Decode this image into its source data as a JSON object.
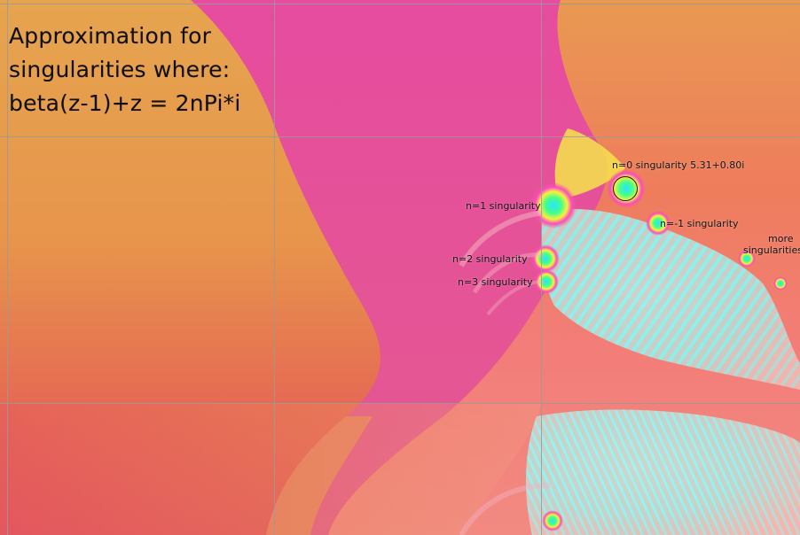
{
  "title": {
    "lines": [
      "Approximation for",
      "singularities where:",
      "beta(z-1)+z = 2nPi*i"
    ]
  },
  "annotations": {
    "n0": "n=0 singularity 5.31+0.80i",
    "n1": "n=1 singularity",
    "nm1": "n=-1 singularity",
    "n2": "n=2 singularity",
    "n3": "n=3 singularity",
    "more_line1": "more",
    "more_line2": "singularities"
  },
  "colors": {
    "background_orange": "#e79a4c",
    "magenta_band": "#e24b9a",
    "cyan_region": "#8ff3ee",
    "salmon": "#f17a6f",
    "grid": "#9a9a9a",
    "text": "#111111"
  }
}
